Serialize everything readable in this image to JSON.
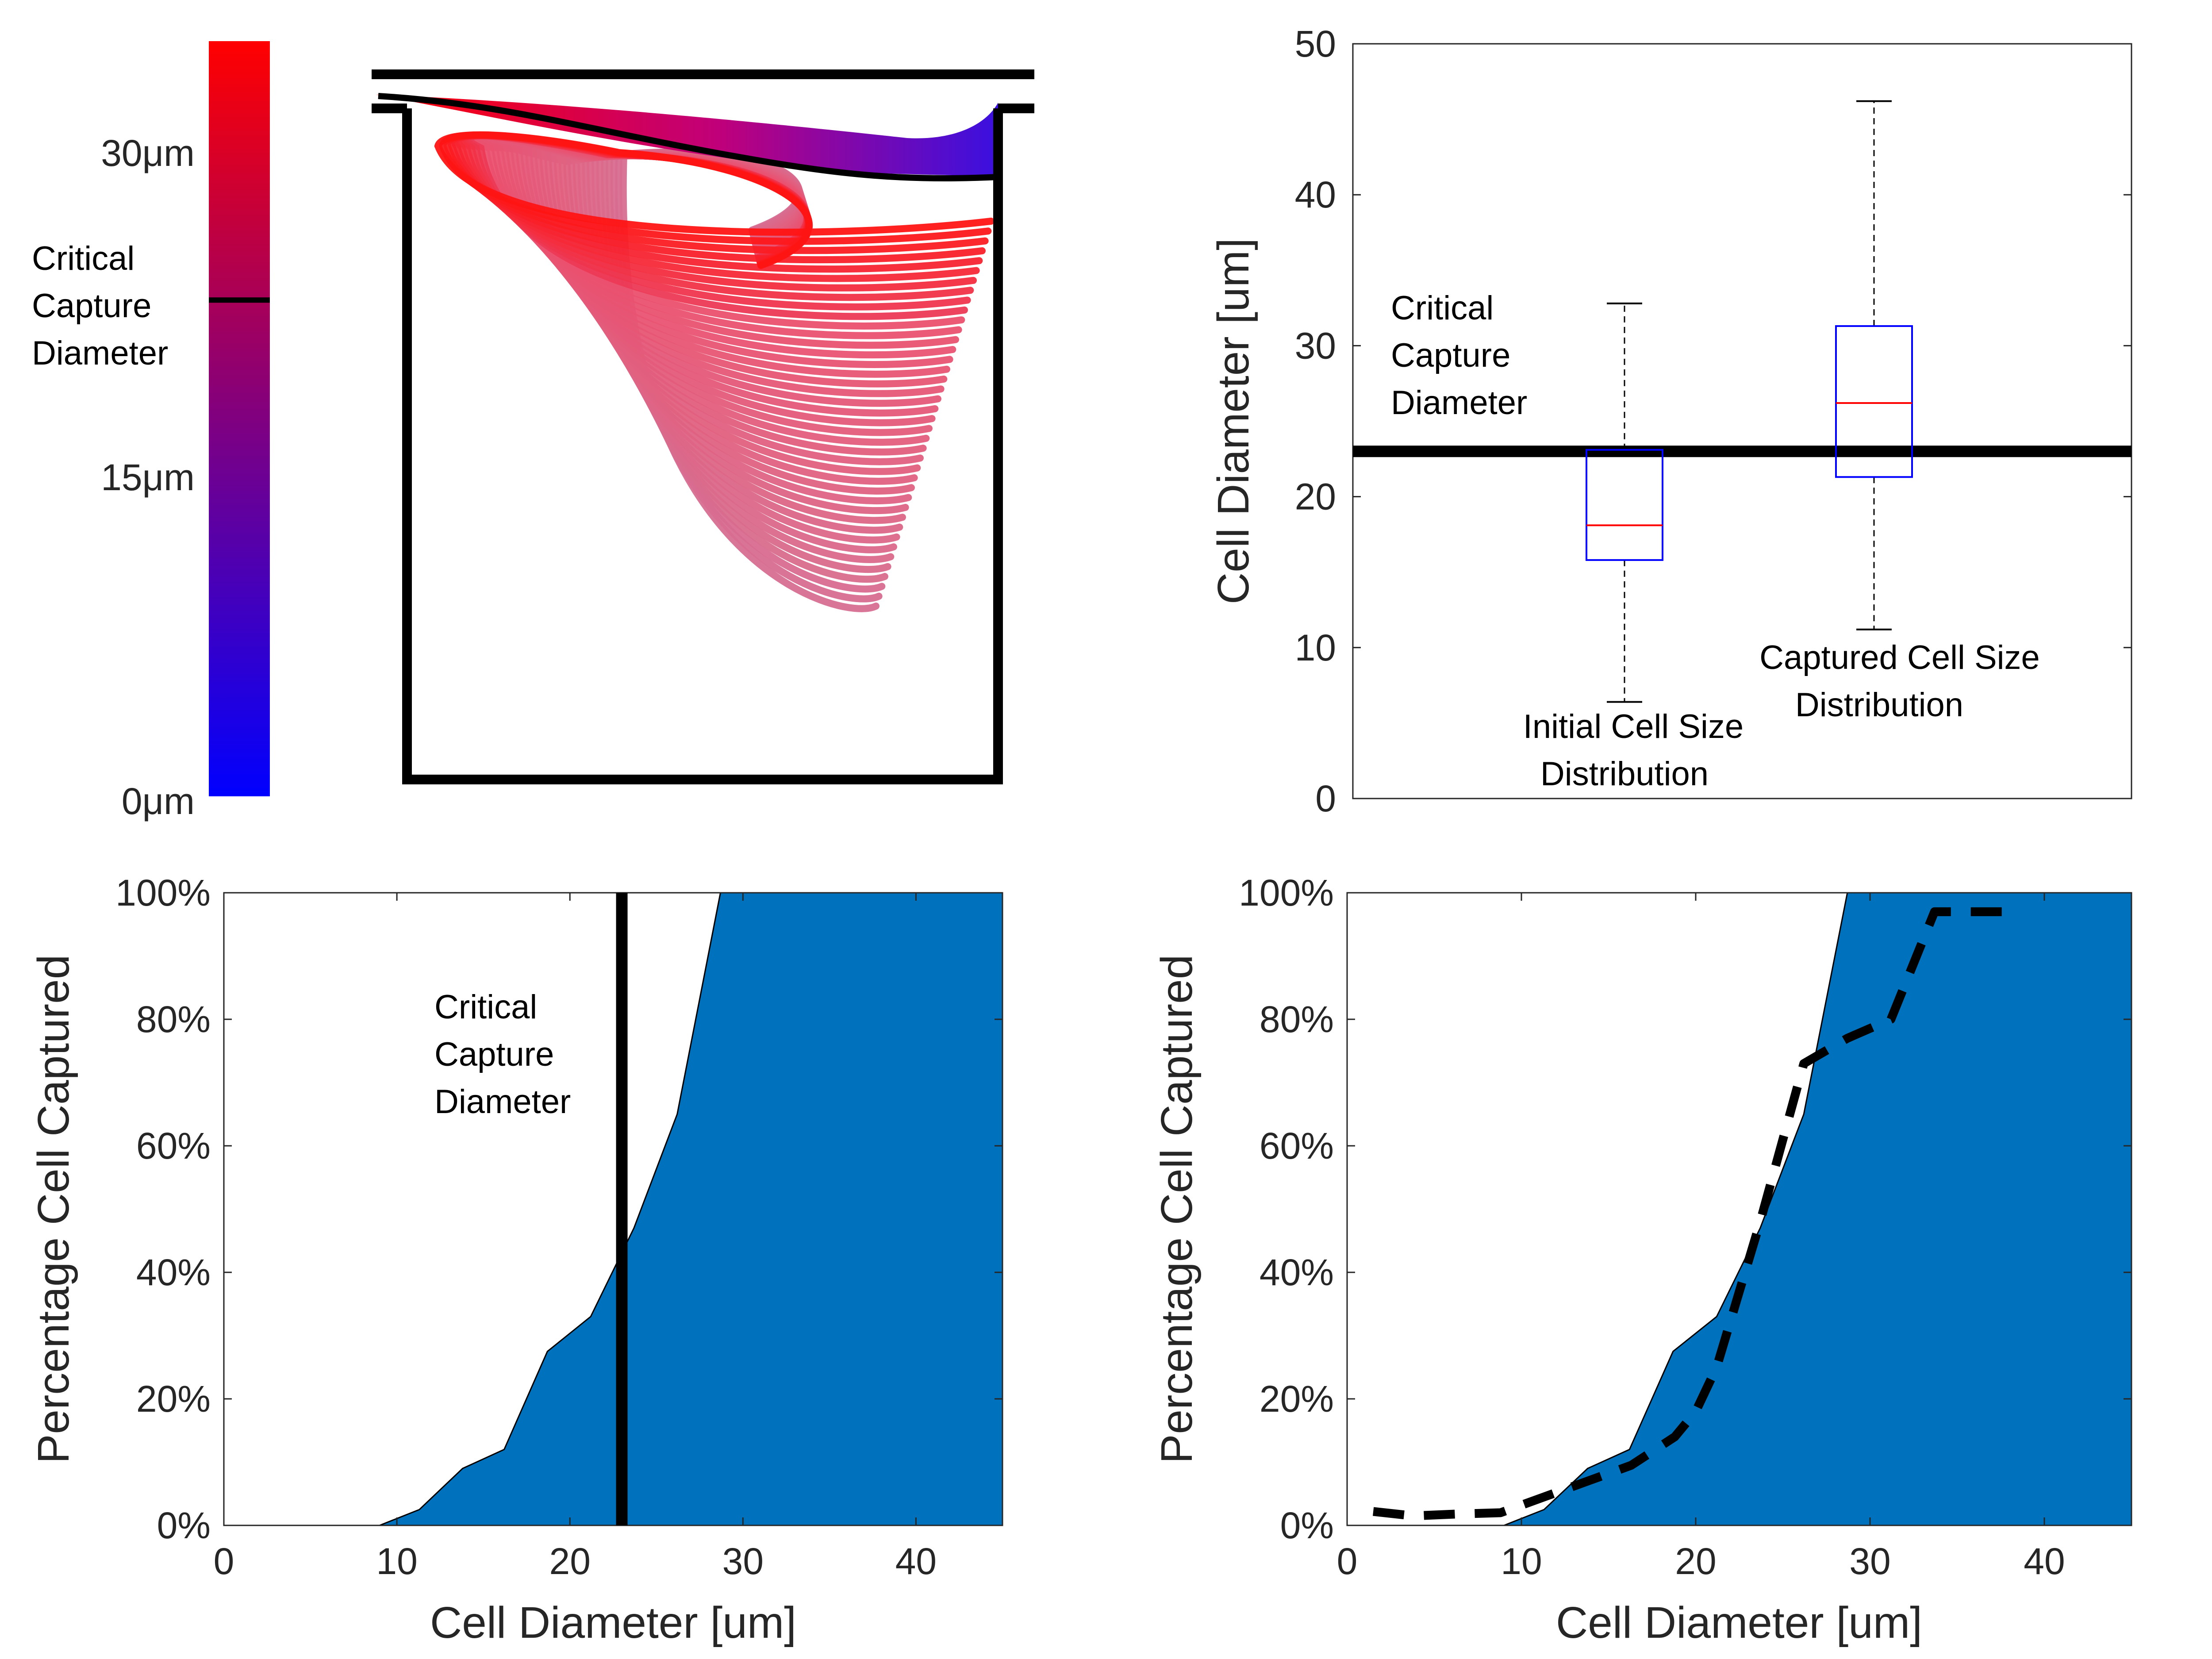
{
  "colors": {
    "area_fill": "#0072BD",
    "box_blue": "#0000FF",
    "median_red": "#FF0000",
    "black": "#000000",
    "colorbar_low": "#0000FF",
    "colorbar_mid": "#800080",
    "colorbar_high": "#FF0000",
    "trajectory_hot": "#FF1A1A",
    "trajectory_pink": "#DB6E92"
  },
  "chart_data": [
    {
      "id": "trajectory_colorbar",
      "type": "other",
      "description_kind": "colorbar",
      "tick_labels": [
        "30μm",
        "15μm",
        "0μm"
      ],
      "tick_values": [
        30,
        15,
        0
      ],
      "range": [
        0,
        35
      ],
      "critical_value": 23,
      "annotation_lines": [
        "Critical",
        "Capture",
        "Diameter"
      ]
    },
    {
      "id": "trajectory_schematic",
      "type": "other",
      "description_kind": "particle trajectories in cavity",
      "trajectory_count": 40
    },
    {
      "id": "box_plot",
      "type": "box",
      "ylabel": "Cell Diameter [um]",
      "ylim": [
        0,
        50
      ],
      "yticks": [
        0,
        10,
        20,
        30,
        40,
        50
      ],
      "critical_capture_diameter": 23,
      "annotation_lines": [
        "Critical",
        "Capture",
        "Diameter"
      ],
      "boxes": [
        {
          "name": "initial",
          "label_lines": [
            "Initial Cell Size",
            "Distribution"
          ],
          "min": 6.4,
          "q1": 15.8,
          "median": 18.1,
          "q3": 23.1,
          "max": 32.8
        },
        {
          "name": "captured",
          "label_lines": [
            "Captured Cell Size",
            "Distribution"
          ],
          "min": 11.2,
          "q1": 21.3,
          "median": 26.2,
          "q3": 31.3,
          "max": 46.2
        }
      ]
    },
    {
      "id": "capture_area_left",
      "type": "area",
      "xlabel": "Cell Diameter [um]",
      "ylabel": "Percentage Cell Captured",
      "xlim": [
        0,
        45
      ],
      "ylim": [
        0,
        100
      ],
      "xticks": [
        0,
        10,
        20,
        30,
        40
      ],
      "yticks": [
        "0%",
        "20%",
        "40%",
        "60%",
        "80%",
        "100%"
      ],
      "x": [
        1.5,
        9,
        11.3,
        13.8,
        16.2,
        18.7,
        21.2,
        23.7,
        26.2,
        28.7,
        45
      ],
      "y": [
        0,
        0,
        2.5,
        9,
        12,
        27.5,
        33,
        47,
        65,
        100,
        100
      ],
      "critical_capture_diameter": 23,
      "annotation_lines": [
        "Critical",
        "Capture",
        "Diameter"
      ]
    },
    {
      "id": "capture_area_right",
      "type": "area",
      "xlabel": "Cell Diameter [um]",
      "ylabel": "Percentage Cell Captured",
      "xlim": [
        0,
        45
      ],
      "ylim": [
        0,
        100
      ],
      "xticks": [
        0,
        10,
        20,
        30,
        40
      ],
      "yticks": [
        "0%",
        "20%",
        "40%",
        "60%",
        "80%",
        "100%"
      ],
      "x": [
        1.5,
        9,
        11.3,
        13.8,
        16.2,
        18.7,
        21.2,
        23.7,
        26.2,
        28.7,
        45
      ],
      "y": [
        0,
        0,
        2.5,
        9,
        12,
        27.5,
        33,
        47,
        65,
        100,
        100
      ],
      "dashed_series": {
        "x": [
          1.5,
          3.8,
          6.3,
          8.8,
          11.3,
          13.8,
          16.3,
          18.8,
          20,
          21.2,
          23.7,
          26.2,
          28.7,
          31.2,
          33.7,
          38
        ],
        "y": [
          2.2,
          1.5,
          1.8,
          2.0,
          4.5,
          7.0,
          9.5,
          14.0,
          18.0,
          25.0,
          48.0,
          73.0,
          77.0,
          80.0,
          97.0,
          97.0
        ]
      }
    }
  ]
}
